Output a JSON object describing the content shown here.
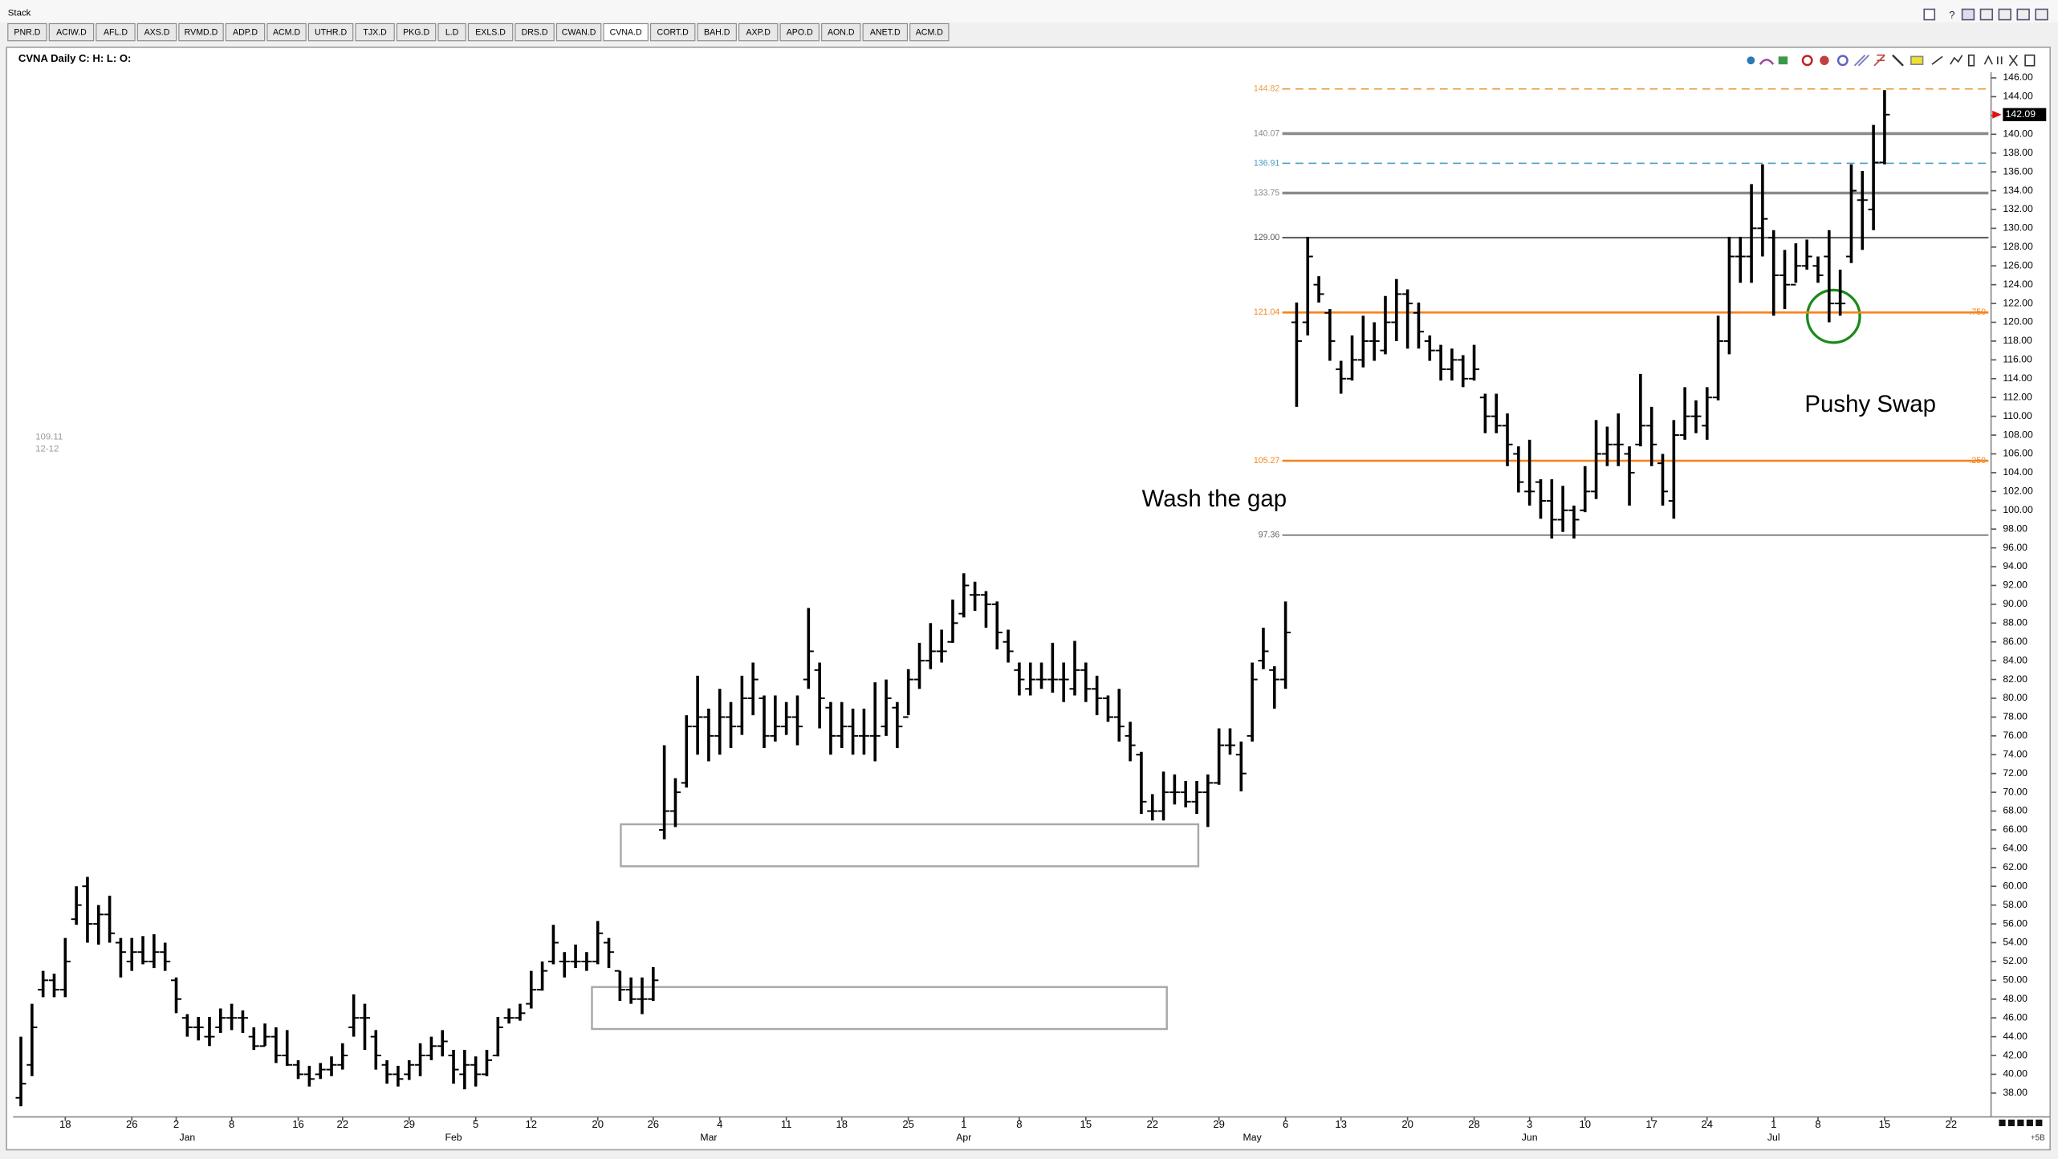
{
  "window": {
    "title": "Stack",
    "tabs": [
      "PNR.D",
      "ACIW.D",
      "AFL.D",
      "AXS.D",
      "RVMD.D",
      "ADP.D",
      "ACM.D",
      "UTHR.D",
      "TJX.D",
      "PKG.D",
      "L.D",
      "EXLS.D",
      "DRS.D",
      "CWAN.D",
      "CVNA.D",
      "CORT.D",
      "BAH.D",
      "AXP.D",
      "APO.D",
      "AON.D",
      "ANET.D",
      "ACM.D"
    ],
    "active_tab": 14
  },
  "chart_data": {
    "type": "ohlc",
    "title": "CVNA Daily C: H: L: O:",
    "color": "#000000",
    "grid": false,
    "xlim": [
      -0.7,
      177.6
    ],
    "ylim": [
      35.6,
      146.6
    ],
    "yticks": [
      {
        "value": 38,
        "label": "38.00"
      },
      {
        "value": 40,
        "label": "40.00"
      },
      {
        "value": 42,
        "label": "42.00"
      },
      {
        "value": 44,
        "label": "44.00"
      },
      {
        "value": 46,
        "label": "46.00"
      },
      {
        "value": 48,
        "label": "48.00"
      },
      {
        "value": 50,
        "label": "50.00"
      },
      {
        "value": 52,
        "label": "52.00"
      },
      {
        "value": 54,
        "label": "54.00"
      },
      {
        "value": 56,
        "label": "56.00"
      },
      {
        "value": 58,
        "label": "58.00"
      },
      {
        "value": 60,
        "label": "60.00"
      },
      {
        "value": 62,
        "label": "62.00"
      },
      {
        "value": 64,
        "label": "64.00"
      },
      {
        "value": 66,
        "label": "66.00"
      },
      {
        "value": 68,
        "label": "68.00"
      },
      {
        "value": 70,
        "label": "70.00"
      },
      {
        "value": 72,
        "label": "72.00"
      },
      {
        "value": 74,
        "label": "74.00"
      },
      {
        "value": 76,
        "label": "76.00"
      },
      {
        "value": 78,
        "label": "78.00"
      },
      {
        "value": 80,
        "label": "80.00"
      },
      {
        "value": 82,
        "label": "82.00"
      },
      {
        "value": 84,
        "label": "84.00"
      },
      {
        "value": 86,
        "label": "86.00"
      },
      {
        "value": 88,
        "label": "88.00"
      },
      {
        "value": 90,
        "label": "90.00"
      },
      {
        "value": 92,
        "label": "92.00"
      },
      {
        "value": 94,
        "label": "94.00"
      },
      {
        "value": 96,
        "label": "96.00"
      },
      {
        "value": 98,
        "label": "98.00"
      },
      {
        "value": 100,
        "label": "100.00"
      },
      {
        "value": 102,
        "label": "102.00"
      },
      {
        "value": 104,
        "label": "104.00"
      },
      {
        "value": 106,
        "label": "106.00"
      },
      {
        "value": 108,
        "label": "108.00"
      },
      {
        "value": 110,
        "label": "110.00"
      },
      {
        "value": 112,
        "label": "112.00"
      },
      {
        "value": 114,
        "label": "114.00"
      },
      {
        "value": 116,
        "label": "116.00"
      },
      {
        "value": 118,
        "label": "118.00"
      },
      {
        "value": 120,
        "label": "120.00"
      },
      {
        "value": 122,
        "label": "122.00"
      },
      {
        "value": 124,
        "label": "124.00"
      },
      {
        "value": 126,
        "label": "126.00"
      },
      {
        "value": 128,
        "label": "128.00"
      },
      {
        "value": 130,
        "label": "130.00"
      },
      {
        "value": 132,
        "label": "132.00"
      },
      {
        "value": 134,
        "label": "134.00"
      },
      {
        "value": 136,
        "label": "136.00"
      },
      {
        "value": 138,
        "label": "138.00"
      },
      {
        "value": 140,
        "label": "140.00"
      },
      {
        "value": 142,
        "label": "142.00"
      },
      {
        "value": 144,
        "label": "144.00"
      },
      {
        "value": 146,
        "label": "146.00"
      }
    ],
    "xticks": [
      {
        "value": 4,
        "label": "18"
      },
      {
        "value": 10,
        "label": "26"
      },
      {
        "value": 14,
        "label": "2"
      },
      {
        "value": 19,
        "label": "8"
      },
      {
        "value": 25,
        "label": "16"
      },
      {
        "value": 29,
        "label": "22"
      },
      {
        "value": 35,
        "label": "29"
      },
      {
        "value": 41,
        "label": "5"
      },
      {
        "value": 46,
        "label": "12"
      },
      {
        "value": 52,
        "label": "20"
      },
      {
        "value": 57,
        "label": "26"
      },
      {
        "value": 63,
        "label": "4"
      },
      {
        "value": 69,
        "label": "11"
      },
      {
        "value": 74,
        "label": "18"
      },
      {
        "value": 80,
        "label": "25"
      },
      {
        "value": 85,
        "label": "1"
      },
      {
        "value": 90,
        "label": "8"
      },
      {
        "value": 96,
        "label": "15"
      },
      {
        "value": 102,
        "label": "22"
      },
      {
        "value": 108,
        "label": "29"
      },
      {
        "value": 114,
        "label": "6"
      },
      {
        "value": 119,
        "label": "13"
      },
      {
        "value": 125,
        "label": "20"
      },
      {
        "value": 131,
        "label": "28"
      },
      {
        "value": 136,
        "label": "3"
      },
      {
        "value": 141,
        "label": "10"
      },
      {
        "value": 147,
        "label": "17"
      },
      {
        "value": 152,
        "label": "24"
      },
      {
        "value": 158,
        "label": "1"
      },
      {
        "value": 162,
        "label": "8"
      },
      {
        "value": 168,
        "label": "15"
      },
      {
        "value": 174,
        "label": "22"
      }
    ],
    "month_ticks": [
      {
        "value": 15,
        "label": "Jan"
      },
      {
        "value": 39,
        "label": "Feb"
      },
      {
        "value": 62,
        "label": "Mar"
      },
      {
        "value": 85,
        "label": "Apr"
      },
      {
        "value": 111,
        "label": "May"
      },
      {
        "value": 136,
        "label": "Jun"
      },
      {
        "value": 158,
        "label": "Jul"
      }
    ],
    "open": [
      37.5,
      41,
      49,
      50,
      49,
      56.5,
      60,
      56,
      57,
      54,
      52,
      53,
      52,
      53,
      50,
      46,
      45,
      44,
      45,
      46,
      46,
      44,
      43,
      44,
      42,
      41,
      40,
      40,
      40.5,
      41,
      45,
      46,
      44,
      41,
      40,
      40,
      41,
      42,
      43,
      42,
      40,
      41,
      40,
      42,
      46,
      46,
      47.5,
      49,
      52,
      52,
      52,
      52,
      52,
      54,
      51,
      49,
      48,
      48,
      66,
      68,
      71,
      77,
      78,
      76,
      78,
      77,
      80,
      80,
      76,
      77,
      78,
      82,
      83,
      79,
      76,
      77,
      76,
      76,
      77,
      79,
      78,
      82,
      84,
      85,
      86,
      89,
      91,
      91,
      90,
      86,
      83,
      81,
      82,
      82,
      82,
      81,
      83,
      81,
      80,
      78,
      76,
      74,
      68,
      68,
      70,
      70,
      69,
      70,
      71,
      75,
      74,
      76,
      84,
      83,
      82,
      120,
      120,
      124,
      121,
      115,
      114,
      116,
      118,
      117,
      120,
      123,
      121,
      118,
      117,
      115,
      116,
      114,
      112,
      110,
      109,
      106,
      102,
      103,
      101,
      99,
      100,
      100,
      102,
      106,
      107,
      106,
      107,
      109,
      105,
      101,
      108,
      110,
      109,
      112,
      118,
      127,
      127,
      130,
      129,
      125,
      124,
      126,
      126,
      127,
      122,
      127,
      133,
      132,
      137
    ],
    "high": [
      44,
      47.5,
      51,
      50.7,
      54.5,
      60,
      61,
      58,
      59,
      54.5,
      54.5,
      54.7,
      54.9,
      54,
      50.3,
      46.4,
      46.1,
      46.1,
      47,
      47.5,
      46.8,
      45,
      45.4,
      45,
      44.7,
      41.5,
      40.9,
      41.2,
      41.9,
      43.3,
      48.5,
      47.5,
      44.7,
      41.5,
      40.9,
      41.5,
      43.3,
      44,
      44.7,
      42.6,
      42.6,
      41.9,
      42.6,
      46.1,
      47,
      47.5,
      51,
      52,
      55.9,
      53,
      53.8,
      53,
      56.3,
      54.5,
      51,
      50.3,
      50.3,
      51.4,
      75,
      71.5,
      78.2,
      82.4,
      78.9,
      81,
      79.6,
      82.4,
      83.8,
      80.3,
      80.3,
      79.6,
      80.3,
      89.6,
      83.8,
      79.6,
      79.6,
      78.9,
      78.9,
      81.7,
      82,
      79.6,
      83.1,
      85.9,
      88,
      87.3,
      90.5,
      93.3,
      92.4,
      91.4,
      90.3,
      87.3,
      83.8,
      83.8,
      83.8,
      85.9,
      83.8,
      86.1,
      83.8,
      82.4,
      80.3,
      81,
      77.5,
      74.3,
      69.8,
      72.2,
      71.9,
      71.2,
      71.2,
      71.9,
      76.8,
      76.8,
      75.4,
      83.8,
      87.5,
      83.4,
      90.3,
      122.1,
      129.1,
      124.9,
      121.4,
      115.9,
      118.6,
      120.7,
      120,
      122.8,
      124.6,
      123.5,
      122.1,
      118.6,
      117.6,
      117.2,
      116.5,
      117.6,
      112.4,
      112.4,
      110.3,
      106.8,
      107.5,
      103.3,
      103.3,
      102.6,
      100.5,
      104.7,
      109.6,
      108.9,
      110.3,
      106.8,
      114.5,
      111,
      106,
      109.6,
      113.1,
      111.7,
      113.1,
      120.7,
      129.1,
      129.1,
      134.7,
      136.8,
      129.8,
      127.7,
      128.4,
      128.8,
      127,
      129.8,
      125.6,
      136.8,
      136.1,
      141,
      144.7
    ],
    "low": [
      36.6,
      39.8,
      48.2,
      48.2,
      48.2,
      55.9,
      54,
      53.8,
      54,
      50.3,
      51,
      51.7,
      51.3,
      51,
      46.5,
      44,
      43.6,
      43,
      44.4,
      44.7,
      44.4,
      42.6,
      43,
      41.2,
      40.9,
      39.5,
      38.7,
      39.5,
      39.8,
      40.5,
      44,
      42.6,
      40.5,
      39,
      38.7,
      39.4,
      39.8,
      41.5,
      41.9,
      39,
      38.4,
      38.7,
      39.8,
      41.9,
      45.4,
      45.7,
      47,
      48.9,
      51.7,
      50.3,
      51.3,
      51,
      51.7,
      51.3,
      47.8,
      47.5,
      46.4,
      47.8,
      65,
      66.3,
      70.5,
      74,
      73.3,
      74,
      74.7,
      76.1,
      78.2,
      74.7,
      75.4,
      76.1,
      75,
      81,
      76.8,
      74,
      74.7,
      74,
      74,
      73.3,
      76,
      74.7,
      78.2,
      81,
      83.1,
      83.8,
      85.9,
      88.6,
      89.3,
      87.5,
      85.2,
      83.8,
      80.3,
      80.3,
      81,
      80.6,
      79.6,
      80.3,
      79.6,
      78.2,
      77.5,
      75.4,
      73.3,
      67.7,
      67,
      67,
      68.7,
      68.4,
      67.7,
      66.3,
      70.8,
      74,
      70.1,
      75.4,
      83.1,
      78.9,
      81,
      111,
      118.6,
      122.1,
      115.9,
      112.4,
      113.8,
      115.2,
      115.9,
      116.6,
      118,
      117.2,
      117.2,
      115.9,
      113.8,
      113.8,
      113.1,
      113.8,
      108.2,
      108.2,
      104.7,
      101.9,
      100.5,
      99.1,
      97,
      97.7,
      97,
      99.8,
      101.2,
      104.7,
      104.7,
      100.5,
      106.8,
      104.7,
      100.5,
      99.1,
      107.5,
      108.2,
      107.5,
      111.7,
      116.6,
      124.2,
      124.2,
      127,
      120.7,
      121.4,
      124.2,
      125.6,
      124.2,
      120,
      120.7,
      126.3,
      127.7,
      129.8,
      136.8
    ],
    "close": [
      39,
      45,
      50,
      49,
      52,
      58,
      56,
      57,
      55,
      53,
      53,
      52,
      53,
      52,
      48,
      45,
      45,
      44,
      46,
      46,
      46,
      43,
      44,
      42,
      41,
      40,
      39.5,
      40.5,
      41,
      42,
      46,
      46,
      42,
      40,
      39.5,
      41,
      42,
      43,
      43.5,
      40.5,
      41,
      40,
      41.5,
      45,
      46,
      46.5,
      49,
      51,
      54,
      52,
      52,
      52,
      55,
      53,
      49,
      48,
      48,
      50,
      68,
      70,
      77,
      78,
      76,
      78,
      77,
      80,
      82,
      76,
      77,
      78,
      77,
      85,
      80,
      76,
      77,
      76,
      76,
      76,
      80,
      77,
      82,
      84,
      85,
      85,
      88,
      92,
      91,
      90,
      87,
      85,
      82,
      82,
      82,
      82,
      82,
      83,
      81,
      80,
      78,
      77,
      75,
      69,
      68,
      70,
      70,
      69,
      70,
      71,
      75,
      75,
      72,
      82,
      85,
      82,
      87,
      118,
      127,
      123,
      118,
      114,
      116,
      118,
      118,
      120,
      123,
      122,
      119,
      117,
      115,
      116,
      114,
      115,
      110,
      109,
      107,
      103,
      102,
      101,
      99,
      100,
      99,
      102,
      106,
      107,
      107,
      104,
      109,
      107,
      102,
      108,
      110,
      110,
      112,
      118,
      127,
      127,
      130,
      131,
      125,
      124,
      126,
      127,
      125,
      122,
      122,
      134,
      133,
      137,
      142.09
    ],
    "levels": [
      {
        "value": 144.82,
        "color": "#e8a04c",
        "dash": true,
        "width": 1
      },
      {
        "value": 140.07,
        "color": "#8a8a8a",
        "dash": false,
        "width": 2.2
      },
      {
        "value": 136.91,
        "color": "#4a9cc8",
        "dash": true,
        "width": 1
      },
      {
        "value": 133.75,
        "color": "#8a8a8a",
        "dash": false,
        "width": 2.2
      },
      {
        "value": 129,
        "label": "129.00",
        "color": "#555555",
        "dash": false,
        "width": 1.2
      },
      {
        "value": 121.04,
        "color": "#f5841f",
        "dash": false,
        "width": 1.6,
        "fib": ".750"
      },
      {
        "value": 105.27,
        "color": "#f5841f",
        "dash": false,
        "width": 1.6,
        "fib": ".250"
      },
      {
        "value": 97.36,
        "color": "#666666",
        "dash": false,
        "width": 1
      }
    ],
    "annotations": [
      "Wash the gap",
      "Pushy Swap"
    ],
    "side_note": {
      "price": 109.11,
      "date": "12-12"
    },
    "axis_note": "+5B"
  }
}
